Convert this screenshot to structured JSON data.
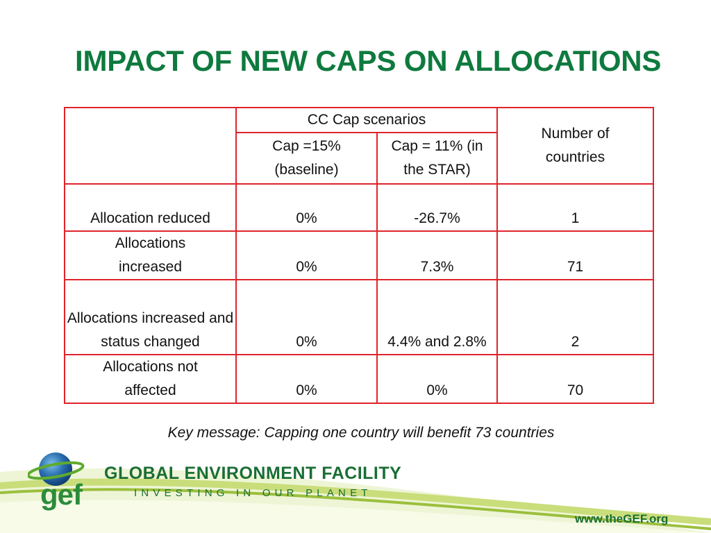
{
  "slide": {
    "title": "IMPACT OF NEW CAPS ON ALLOCATIONS",
    "key_message": "Key message: Capping one country will benefit 73 countries"
  },
  "table": {
    "group_header": "CC Cap scenarios",
    "col_headers": [
      "Cap =15% (baseline)",
      "Cap = 11% (in the STAR)"
    ],
    "count_header": "Number of countries",
    "rows": [
      {
        "label": "Allocation reduced",
        "cap15": "0%",
        "cap11": "-26.7%",
        "count": "1"
      },
      {
        "label": "Allocations increased",
        "cap15": "0%",
        "cap11": "7.3%",
        "count": "71"
      },
      {
        "label": "Allocations increased and status changed",
        "cap15": "0%",
        "cap11": "4.4% and 2.8%",
        "count": "2"
      },
      {
        "label": "Allocations not affected",
        "cap15": "0%",
        "cap11": "0%",
        "count": "70"
      }
    ]
  },
  "footer": {
    "logo_text": "gef",
    "org_name": "GLOBAL ENVIRONMENT FACILITY",
    "tagline": "INVESTING IN OUR PLANET",
    "url": "www.theGEF.org"
  },
  "colors": {
    "title_green": "#0e7a3e",
    "table_border_red": "#e0232b",
    "brand_green": "#1a6e34"
  }
}
